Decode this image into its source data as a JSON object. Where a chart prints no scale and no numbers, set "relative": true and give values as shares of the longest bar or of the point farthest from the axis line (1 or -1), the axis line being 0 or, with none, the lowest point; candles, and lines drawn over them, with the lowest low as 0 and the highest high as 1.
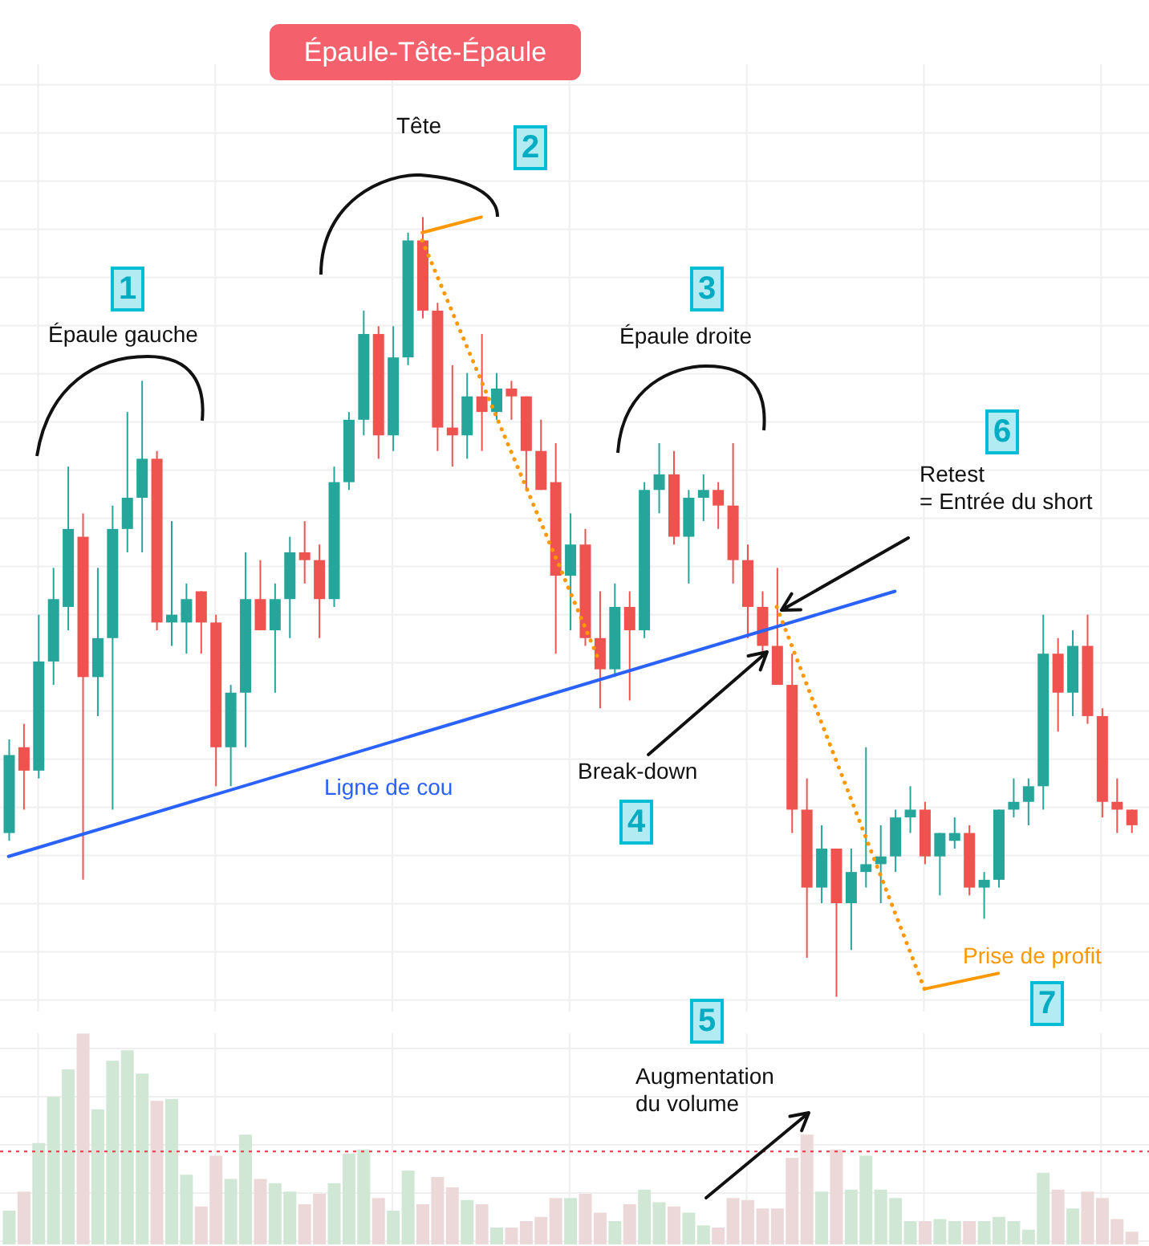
{
  "chart_data": [
    {
      "type": "candlestick",
      "title": "Épaule-Tête-Épaule",
      "relative": true,
      "grid": true,
      "categories": [
        null,
        null,
        null,
        null,
        null,
        null,
        null,
        null,
        null,
        null,
        null,
        null,
        null,
        null,
        null,
        null,
        null,
        null,
        null,
        null,
        null,
        null,
        null,
        null,
        null,
        null,
        null,
        null,
        null,
        null,
        null,
        null,
        null,
        null,
        null,
        null,
        null,
        null,
        null,
        null,
        null,
        null,
        null,
        null,
        null,
        null,
        null,
        null,
        null,
        null,
        null,
        null,
        null,
        null,
        null,
        null,
        null,
        null,
        null,
        null,
        null,
        null,
        null,
        null,
        null,
        null,
        null,
        null,
        null,
        null,
        null,
        null,
        null,
        null,
        null,
        null,
        null
      ],
      "ohlc": [
        [
          0.21,
          0.33,
          0.2,
          0.31
        ],
        [
          0.32,
          0.35,
          0.24,
          0.29
        ],
        [
          0.29,
          0.49,
          0.28,
          0.43
        ],
        [
          0.43,
          0.55,
          0.4,
          0.51
        ],
        [
          0.5,
          0.68,
          0.47,
          0.6
        ],
        [
          0.59,
          0.62,
          0.15,
          0.41
        ],
        [
          0.41,
          0.55,
          0.36,
          0.46
        ],
        [
          0.46,
          0.63,
          0.24,
          0.6
        ],
        [
          0.6,
          0.75,
          0.57,
          0.64
        ],
        [
          0.64,
          0.79,
          0.57,
          0.69
        ],
        [
          0.69,
          0.7,
          0.47,
          0.48
        ],
        [
          0.48,
          0.61,
          0.45,
          0.49
        ],
        [
          0.48,
          0.53,
          0.44,
          0.51
        ],
        [
          0.52,
          0.52,
          0.44,
          0.48
        ],
        [
          0.48,
          0.49,
          0.27,
          0.32
        ],
        [
          0.32,
          0.4,
          0.27,
          0.39
        ],
        [
          0.39,
          0.57,
          0.32,
          0.51
        ],
        [
          0.51,
          0.56,
          0.47,
          0.47
        ],
        [
          0.47,
          0.53,
          0.39,
          0.51
        ],
        [
          0.51,
          0.59,
          0.46,
          0.57
        ],
        [
          0.57,
          0.61,
          0.53,
          0.56
        ],
        [
          0.56,
          0.58,
          0.46,
          0.51
        ],
        [
          0.51,
          0.68,
          0.5,
          0.66
        ],
        [
          0.66,
          0.75,
          0.65,
          0.74
        ],
        [
          0.74,
          0.88,
          0.72,
          0.85
        ],
        [
          0.85,
          0.86,
          0.69,
          0.72
        ],
        [
          0.72,
          0.86,
          0.7,
          0.82
        ],
        [
          0.82,
          0.98,
          0.81,
          0.97
        ],
        [
          0.97,
          1,
          0.87,
          0.88
        ],
        [
          0.88,
          0.89,
          0.7,
          0.73
        ],
        [
          0.73,
          0.81,
          0.68,
          0.72
        ],
        [
          0.72,
          0.8,
          0.69,
          0.77
        ],
        [
          0.77,
          0.85,
          0.7,
          0.75
        ],
        [
          0.75,
          0.8,
          0.74,
          0.78
        ],
        [
          0.78,
          0.79,
          0.74,
          0.77
        ],
        [
          0.77,
          0.77,
          0.65,
          0.7
        ],
        [
          0.7,
          0.74,
          0.65,
          0.65
        ],
        [
          0.66,
          0.71,
          0.44,
          0.54
        ],
        [
          0.54,
          0.62,
          0.47,
          0.58
        ],
        [
          0.58,
          0.6,
          0.45,
          0.46
        ],
        [
          0.46,
          0.52,
          0.37,
          0.42
        ],
        [
          0.42,
          0.53,
          0.41,
          0.5
        ],
        [
          0.5,
          0.52,
          0.38,
          0.47
        ],
        [
          0.47,
          0.66,
          0.46,
          0.65
        ],
        [
          0.65,
          0.71,
          0.62,
          0.67
        ],
        [
          0.67,
          0.7,
          0.58,
          0.59
        ],
        [
          0.59,
          0.65,
          0.53,
          0.64
        ],
        [
          0.64,
          0.67,
          0.61,
          0.65
        ],
        [
          0.65,
          0.66,
          0.6,
          0.63
        ],
        [
          0.63,
          0.71,
          0.53,
          0.56
        ],
        [
          0.56,
          0.58,
          0.46,
          0.5
        ],
        [
          0.5,
          0.52,
          0.44,
          0.45
        ],
        [
          0.45,
          0.55,
          0.4,
          0.4
        ],
        [
          0.4,
          0.44,
          0.21,
          0.24
        ],
        [
          0.24,
          0.28,
          0.05,
          0.14
        ],
        [
          0.14,
          0.22,
          0.12,
          0.19
        ],
        [
          0.19,
          0.19,
          0,
          0.12
        ],
        [
          0.12,
          0.19,
          0.06,
          0.16
        ],
        [
          0.16,
          0.32,
          0.14,
          0.17
        ],
        [
          0.17,
          0.22,
          0.12,
          0.18
        ],
        [
          0.18,
          0.24,
          0.16,
          0.23
        ],
        [
          0.23,
          0.27,
          0.21,
          0.24
        ],
        [
          0.24,
          0.25,
          0.17,
          0.18
        ],
        [
          0.18,
          0.21,
          0.13,
          0.21
        ],
        [
          0.2,
          0.23,
          0.19,
          0.21
        ],
        [
          0.21,
          0.22,
          0.13,
          0.14
        ],
        [
          0.14,
          0.16,
          0.1,
          0.15
        ],
        [
          0.15,
          0.24,
          0.14,
          0.24
        ],
        [
          0.24,
          0.28,
          0.23,
          0.25
        ],
        [
          0.25,
          0.28,
          0.22,
          0.27
        ],
        [
          0.27,
          0.49,
          0.24,
          0.44
        ],
        [
          0.44,
          0.46,
          0.34,
          0.39
        ],
        [
          0.39,
          0.47,
          0.36,
          0.45
        ],
        [
          0.45,
          0.49,
          0.35,
          0.36
        ],
        [
          0.36,
          0.37,
          0.23,
          0.25
        ],
        [
          0.25,
          0.28,
          0.21,
          0.24
        ],
        [
          0.24,
          0.24,
          0.21,
          0.22
        ]
      ],
      "colors": [
        "#26a69a",
        "#ef5350",
        "#26a69a",
        "#26a69a",
        "#26a69a",
        "#ef5350",
        "#26a69a",
        "#26a69a",
        "#26a69a",
        "#26a69a",
        "#ef5350",
        "#26a69a",
        "#26a69a",
        "#ef5350",
        "#ef5350",
        "#26a69a",
        "#26a69a",
        "#ef5350",
        "#26a69a",
        "#26a69a",
        "#ef5350",
        "#ef5350",
        "#26a69a",
        "#26a69a",
        "#26a69a",
        "#ef5350",
        "#26a69a",
        "#26a69a",
        "#ef5350",
        "#ef5350",
        "#ef5350",
        "#26a69a",
        "#ef5350",
        "#26a69a",
        "#ef5350",
        "#ef5350",
        "#ef5350",
        "#ef5350",
        "#26a69a",
        "#ef5350",
        "#ef5350",
        "#26a69a",
        "#ef5350",
        "#26a69a",
        "#26a69a",
        "#ef5350",
        "#26a69a",
        "#26a69a",
        "#ef5350",
        "#ef5350",
        "#ef5350",
        "#ef5350",
        "#ef5350",
        "#ef5350",
        "#ef5350",
        "#26a69a",
        "#ef5350",
        "#26a69a",
        "#26a69a",
        "#26a69a",
        "#26a69a",
        "#26a69a",
        "#ef5350",
        "#26a69a",
        "#26a69a",
        "#ef5350",
        "#26a69a",
        "#26a69a",
        "#26a69a",
        "#26a69a",
        "#26a69a",
        "#ef5350",
        "#26a69a",
        "#ef5350",
        "#ef5350",
        "#ef5350",
        "#ef5350"
      ],
      "series": [
        {
          "type": "line",
          "name": "Ligne de cou",
          "color": "#2962ff",
          "values": [
            0.18,
            null,
            null,
            null,
            null,
            null,
            null,
            null,
            null,
            null,
            null,
            null,
            null,
            null,
            null,
            null,
            null,
            null,
            null,
            null,
            null,
            null,
            null,
            null,
            null,
            null,
            null,
            null,
            null,
            null,
            null,
            null,
            null,
            null,
            null,
            null,
            null,
            null,
            null,
            null,
            null,
            null,
            null,
            null,
            null,
            null,
            null,
            null,
            null,
            null,
            null,
            null,
            null,
            null,
            null,
            null,
            null,
            null,
            null,
            null,
            0.52,
            null,
            null,
            null,
            null,
            null,
            null,
            null,
            null,
            null,
            null,
            null,
            null,
            null,
            null,
            null,
            null
          ],
          "line_style": "solid"
        },
        {
          "type": "line",
          "color": "#ff9800",
          "values": [
            null,
            null,
            null,
            null,
            null,
            null,
            null,
            null,
            null,
            null,
            null,
            null,
            null,
            null,
            null,
            null,
            null,
            null,
            null,
            null,
            null,
            null,
            null,
            null,
            null,
            null,
            null,
            null,
            0.97,
            null,
            null,
            null,
            null,
            null,
            null,
            null,
            null,
            null,
            null,
            null,
            0.43,
            null,
            null,
            null,
            null,
            null,
            null,
            null,
            null,
            null,
            null,
            null,
            null,
            null,
            null,
            null,
            null,
            null,
            null,
            null,
            null,
            null,
            null,
            null,
            null,
            null,
            null,
            null,
            null,
            null,
            null,
            null,
            null,
            null,
            null,
            null,
            null
          ],
          "line_style": "dotted"
        },
        {
          "type": "line",
          "color": "#ff9800",
          "values": [
            null,
            null,
            null,
            null,
            null,
            null,
            null,
            null,
            null,
            null,
            null,
            null,
            null,
            null,
            null,
            null,
            null,
            null,
            null,
            null,
            null,
            null,
            null,
            null,
            null,
            null,
            null,
            null,
            null,
            null,
            null,
            null,
            null,
            null,
            null,
            null,
            null,
            null,
            null,
            null,
            null,
            null,
            null,
            null,
            null,
            null,
            null,
            null,
            null,
            null,
            null,
            null,
            0.5,
            null,
            null,
            null,
            null,
            null,
            null,
            null,
            null,
            null,
            0.01,
            null,
            null,
            null,
            null,
            null,
            null,
            null,
            null,
            null,
            null,
            null,
            null,
            null,
            null
          ],
          "line_style": "dotted"
        },
        {
          "type": "line",
          "color": "#ff9800",
          "values": [
            null,
            null,
            null,
            null,
            null,
            null,
            null,
            null,
            null,
            null,
            null,
            null,
            null,
            null,
            null,
            null,
            null,
            null,
            null,
            null,
            null,
            null,
            null,
            null,
            null,
            null,
            null,
            null,
            0.98,
            null,
            null,
            null,
            1,
            null,
            null,
            null,
            null,
            null,
            null,
            null,
            null,
            null,
            null,
            null,
            null,
            null,
            null,
            null,
            null,
            null,
            null,
            null,
            null,
            null,
            null,
            null,
            null,
            null,
            null,
            null,
            null,
            null,
            null,
            null,
            null,
            null,
            null,
            null,
            null,
            null,
            null,
            null,
            null,
            null,
            null,
            null,
            null
          ],
          "line_style": "solid"
        },
        {
          "type": "line",
          "color": "#ff9800",
          "values": [
            null,
            null,
            null,
            null,
            null,
            null,
            null,
            null,
            null,
            null,
            null,
            null,
            null,
            null,
            null,
            null,
            null,
            null,
            null,
            null,
            null,
            null,
            null,
            null,
            null,
            null,
            null,
            null,
            null,
            null,
            null,
            null,
            null,
            null,
            null,
            null,
            null,
            null,
            null,
            null,
            null,
            null,
            null,
            null,
            null,
            null,
            null,
            null,
            null,
            null,
            null,
            null,
            null,
            null,
            null,
            null,
            null,
            null,
            null,
            null,
            null,
            null,
            0.01,
            null,
            null,
            null,
            null,
            0.03,
            null,
            null,
            null,
            null,
            null,
            null,
            null,
            null,
            null
          ],
          "line_style": "solid"
        }
      ],
      "annotations": [
        "1",
        "Épaule gauche",
        "2",
        "Tête",
        "3",
        "Épaule droite",
        "6",
        "Retest\n= Entrée du short",
        "Break-down",
        "4",
        "Prise de profit",
        "7"
      ]
    },
    {
      "type": "bar",
      "relative": true,
      "grid": true,
      "categories": [
        null,
        null,
        null,
        null,
        null,
        null,
        null,
        null,
        null,
        null,
        null,
        null,
        null,
        null,
        null,
        null,
        null,
        null,
        null,
        null,
        null,
        null,
        null,
        null,
        null,
        null,
        null,
        null,
        null,
        null,
        null,
        null,
        null,
        null,
        null,
        null,
        null,
        null,
        null,
        null,
        null,
        null,
        null,
        null,
        null,
        null,
        null,
        null,
        null,
        null,
        null,
        null,
        null,
        null,
        null,
        null,
        null,
        null,
        null,
        null,
        null,
        null,
        null,
        null,
        null,
        null,
        null,
        null,
        null,
        null,
        null,
        null,
        null,
        null,
        null,
        null,
        null
      ],
      "values": [
        0.16,
        0.25,
        0.48,
        0.7,
        0.83,
        1,
        0.64,
        0.87,
        0.92,
        0.81,
        0.68,
        0.69,
        0.33,
        0.18,
        0.42,
        0.31,
        0.52,
        0.31,
        0.29,
        0.25,
        0.19,
        0.24,
        0.29,
        0.43,
        0.45,
        0.22,
        0.16,
        0.35,
        0.19,
        0.32,
        0.27,
        0.21,
        0.19,
        0.08,
        0.08,
        0.11,
        0.13,
        0.22,
        0.22,
        0.24,
        0.15,
        0.11,
        0.19,
        0.26,
        0.2,
        0.18,
        0.15,
        0.09,
        0.08,
        0.22,
        0.21,
        0.17,
        0.17,
        0.41,
        0.52,
        0.25,
        0.45,
        0.26,
        0.42,
        0.26,
        0.22,
        0.11,
        0.11,
        0.12,
        0.11,
        0.11,
        0.11,
        0.13,
        0.11,
        0.07,
        0.34,
        0.26,
        0.17,
        0.25,
        0.22,
        0.12,
        0.06
      ],
      "colors": [
        "#d1e7d6",
        "#ecd8d9",
        "#d1e7d6",
        "#d1e7d6",
        "#d1e7d6",
        "#ecd8d9",
        "#d1e7d6",
        "#d1e7d6",
        "#d1e7d6",
        "#d1e7d6",
        "#ecd8d9",
        "#d1e7d6",
        "#d1e7d6",
        "#ecd8d9",
        "#ecd8d9",
        "#d1e7d6",
        "#d1e7d6",
        "#ecd8d9",
        "#d1e7d6",
        "#d1e7d6",
        "#ecd8d9",
        "#ecd8d9",
        "#d1e7d6",
        "#d1e7d6",
        "#d1e7d6",
        "#ecd8d9",
        "#d1e7d6",
        "#d1e7d6",
        "#ecd8d9",
        "#ecd8d9",
        "#ecd8d9",
        "#d1e7d6",
        "#ecd8d9",
        "#d1e7d6",
        "#ecd8d9",
        "#ecd8d9",
        "#ecd8d9",
        "#ecd8d9",
        "#d1e7d6",
        "#ecd8d9",
        "#ecd8d9",
        "#d1e7d6",
        "#ecd8d9",
        "#d1e7d6",
        "#d1e7d6",
        "#ecd8d9",
        "#d1e7d6",
        "#d1e7d6",
        "#ecd8d9",
        "#ecd8d9",
        "#ecd8d9",
        "#ecd8d9",
        "#ecd8d9",
        "#ecd8d9",
        "#ecd8d9",
        "#d1e7d6",
        "#ecd8d9",
        "#d1e7d6",
        "#d1e7d6",
        "#d1e7d6",
        "#d1e7d6",
        "#d1e7d6",
        "#ecd8d9",
        "#d1e7d6",
        "#d1e7d6",
        "#ecd8d9",
        "#d1e7d6",
        "#d1e7d6",
        "#d1e7d6",
        "#d1e7d6",
        "#d1e7d6",
        "#ecd8d9",
        "#d1e7d6",
        "#ecd8d9",
        "#ecd8d9",
        "#ecd8d9",
        "#ecd8d9"
      ],
      "ref_lines": [
        {
          "axis": "y",
          "value": 0.44,
          "color": "#f23645",
          "line_style": "dotted"
        }
      ],
      "annotations": [
        "5",
        "Augmentation\ndu volume"
      ]
    }
  ]
}
